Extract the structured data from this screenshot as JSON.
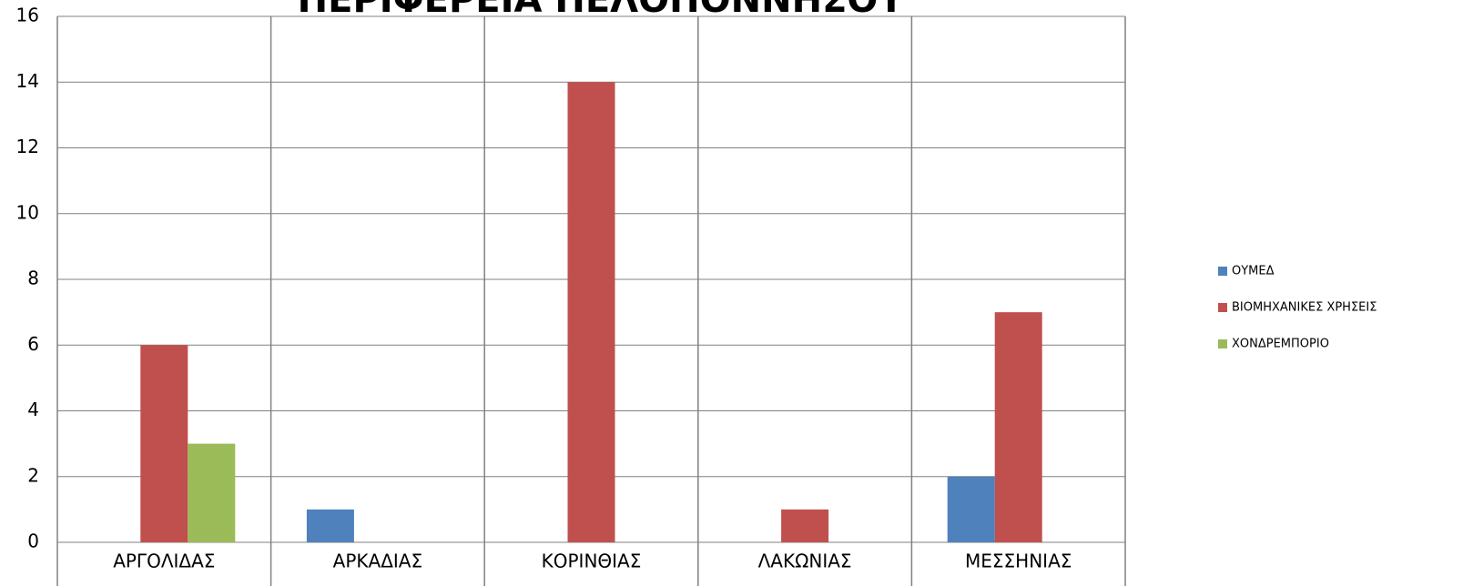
{
  "chart_data": {
    "type": "bar",
    "title": "ΠΕΡΙΦΕΡΕΙΑ ΠΕΛΟΠΟΝΝΗΣΟΥ",
    "categories": [
      "ΑΡΓΟΛΙΔΑΣ",
      "ΑΡΚΑΔΙΑΣ",
      "ΚΟΡΙΝΘΙΑΣ",
      "ΛΑΚΩΝΙΑΣ",
      "ΜΕΣΣΗΝΙΑΣ"
    ],
    "series": [
      {
        "name": "ΟΥΜΕΔ",
        "color": "#4f81bd",
        "values": [
          0,
          1,
          0,
          0,
          2
        ]
      },
      {
        "name": "ΒΙΟΜΗΧΑΝΙΚΕΣ ΧΡΗΣΕΙΣ",
        "color": "#c0504d",
        "values": [
          6,
          0,
          14,
          1,
          7
        ]
      },
      {
        "name": "ΧΟΝΔΡΕΜΠΟΡΙΟ",
        "color": "#9bbb59",
        "values": [
          3,
          0,
          0,
          0,
          0
        ]
      }
    ],
    "ylim": [
      0,
      16
    ],
    "yticks": [
      0,
      2,
      4,
      6,
      8,
      10,
      12,
      14,
      16
    ],
    "grid": true,
    "legend": "right"
  }
}
